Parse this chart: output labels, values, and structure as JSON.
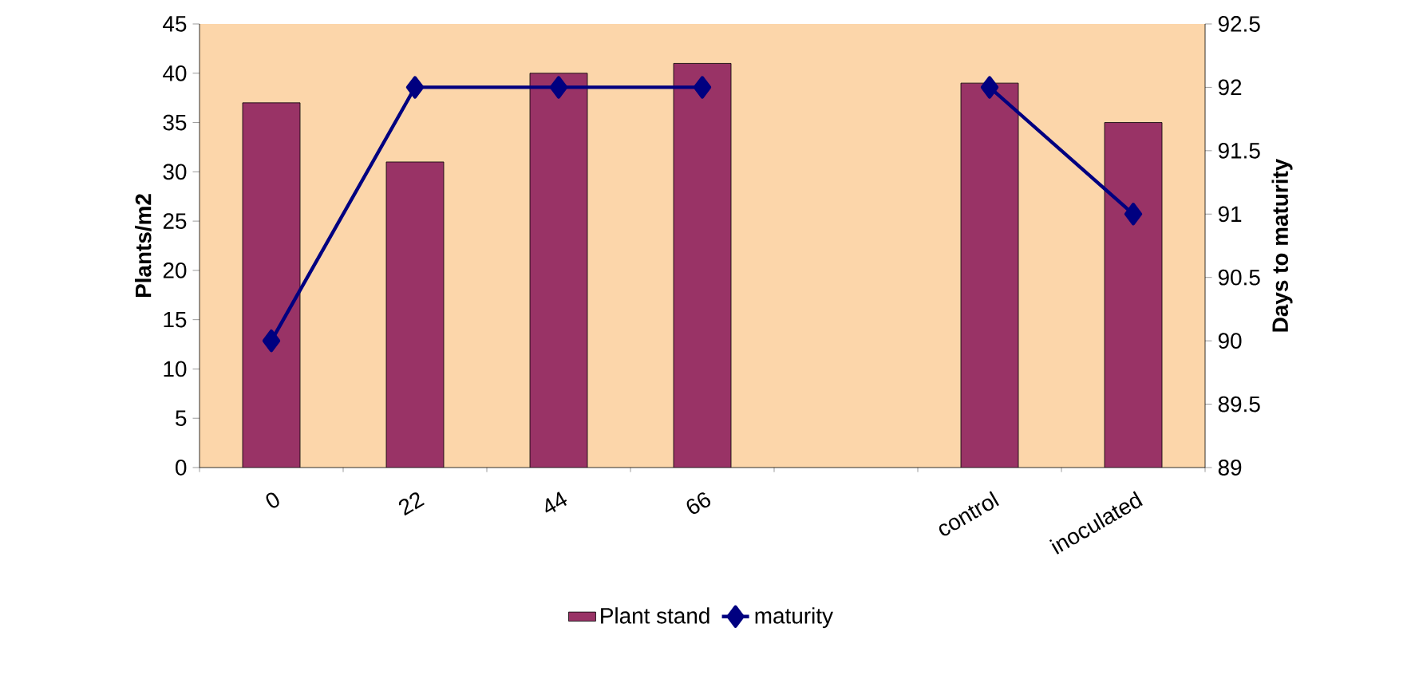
{
  "chart_data": {
    "type": "bar",
    "ylabel": "Plants/m2",
    "y2label": "Days to maturity",
    "categories": [
      "0",
      "22",
      "44",
      "66",
      null,
      "control",
      "inoculated"
    ],
    "series": [
      {
        "name": "Plant stand",
        "color": "#993366",
        "values": [
          37,
          31,
          40,
          41,
          null,
          39,
          35
        ]
      },
      {
        "name": "maturity",
        "type": "line",
        "axis": "y2",
        "color": "#000080",
        "marker": "diamond",
        "line_style": "solid",
        "values": [
          90,
          92,
          92,
          92,
          null,
          92,
          91
        ]
      }
    ],
    "ylim": [
      0,
      45
    ],
    "yticks": [
      0,
      5,
      10,
      15,
      20,
      25,
      30,
      35,
      40,
      45
    ],
    "y2lim": [
      89,
      92.5
    ],
    "y2ticks": [
      89,
      89.5,
      90,
      90.5,
      91,
      91.5,
      92,
      92.5
    ],
    "legend": "bottom",
    "grid": false
  }
}
